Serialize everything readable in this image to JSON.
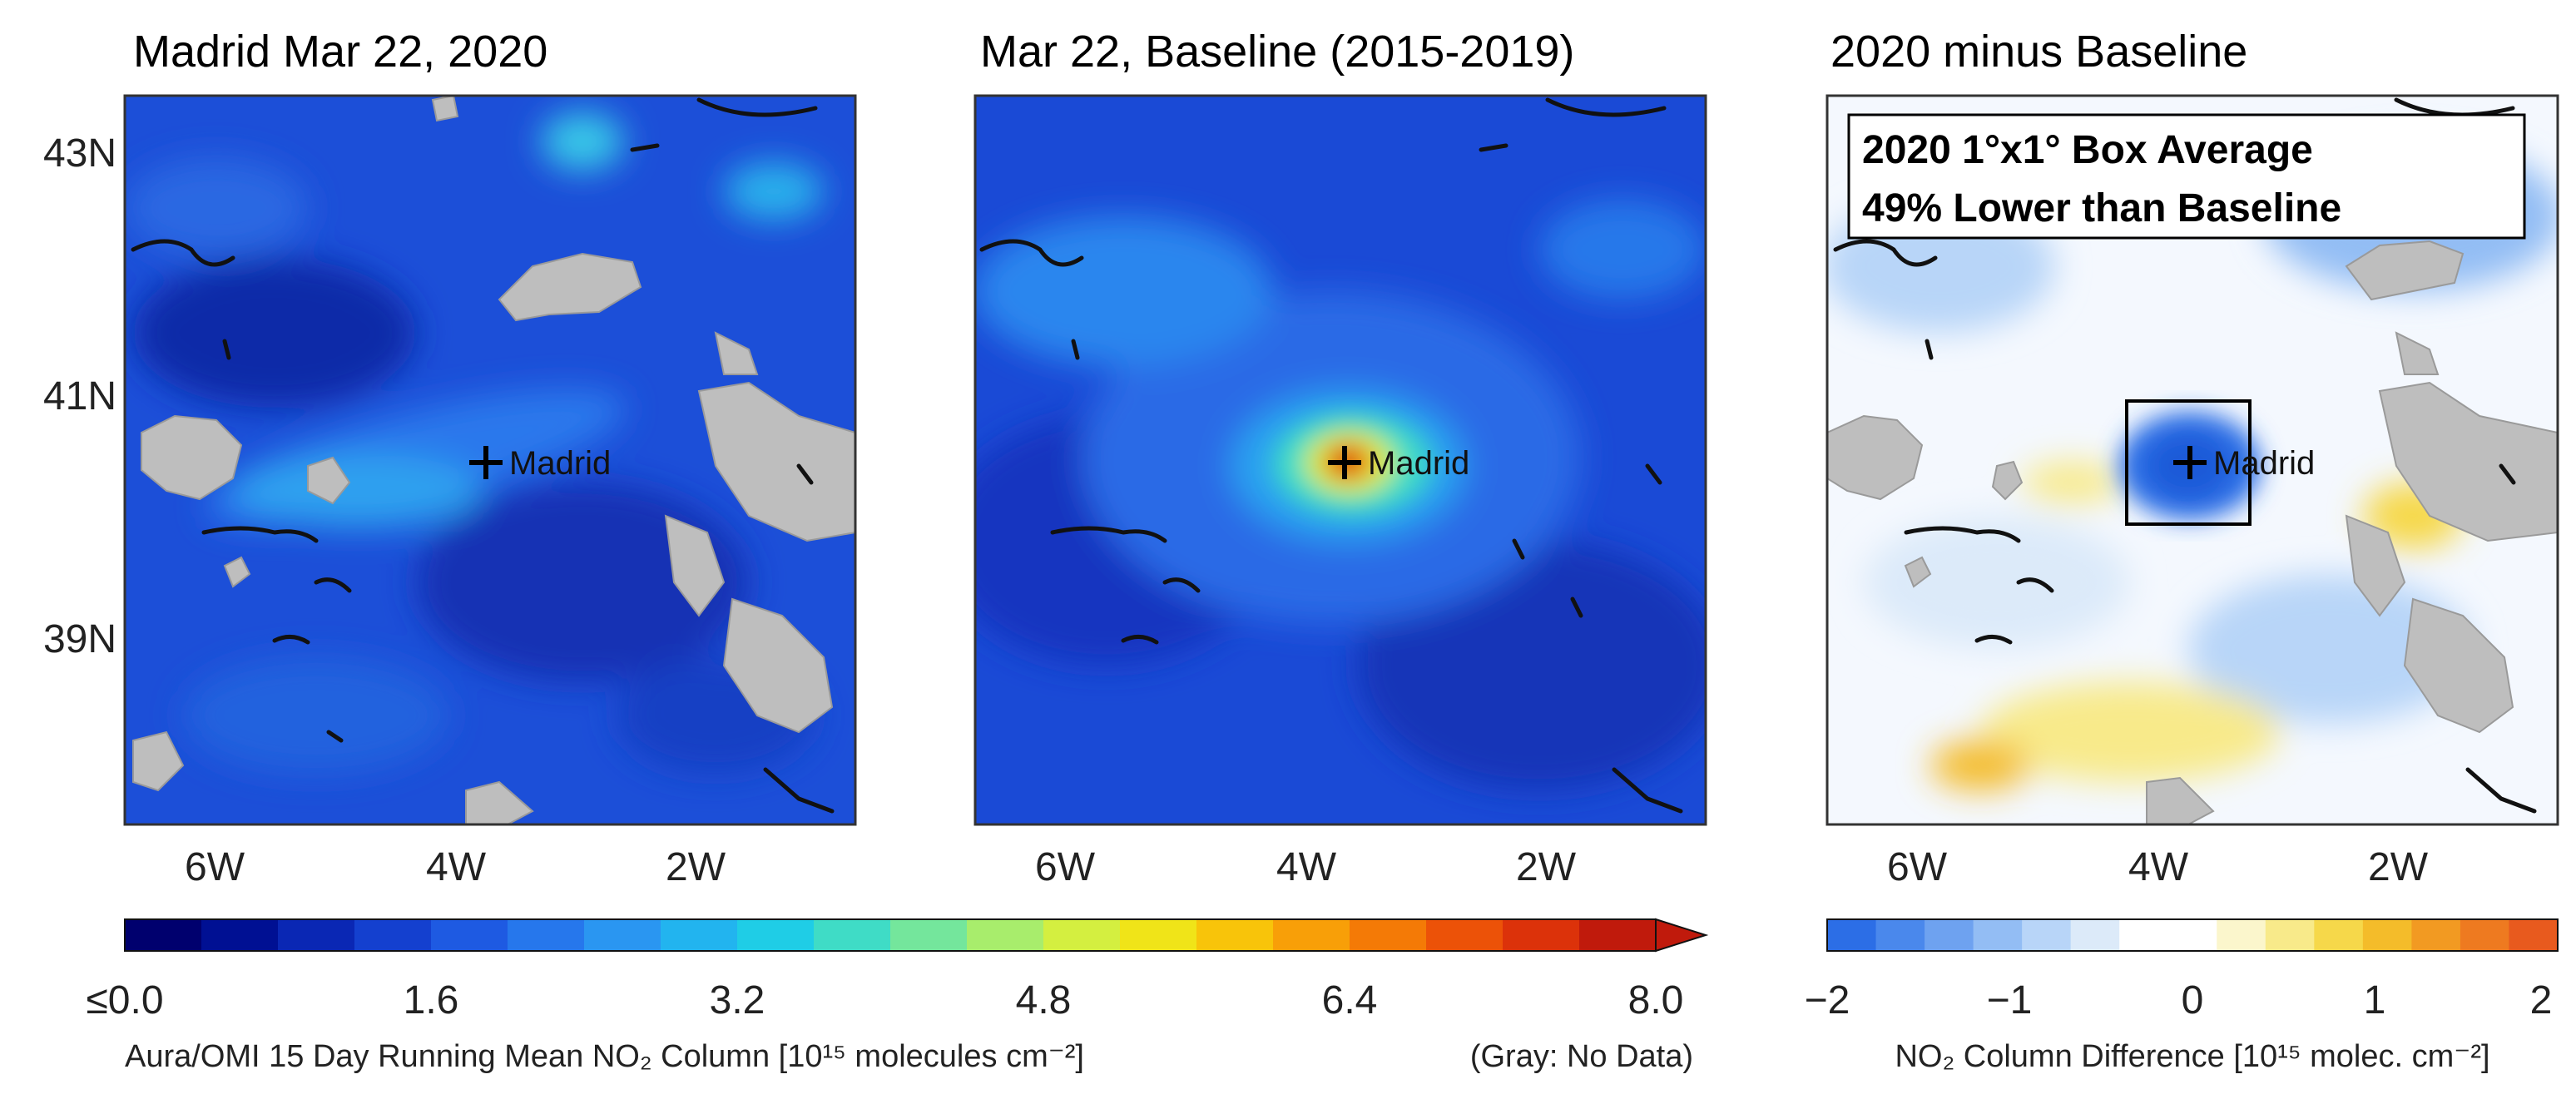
{
  "panels": [
    {
      "title": "Madrid Mar 22, 2020",
      "city": "Madrid"
    },
    {
      "title": "Mar 22, Baseline (2015-2019)",
      "city": "Madrid"
    },
    {
      "title": "2020 minus Baseline",
      "city": "Madrid",
      "annotation": [
        "2020 1°x1° Box Average",
        "49% Lower than Baseline"
      ]
    }
  ],
  "axes": {
    "lat_ticks": [
      "43N",
      "41N",
      "39N"
    ],
    "lon_ticks": [
      "6W",
      "4W",
      "2W"
    ]
  },
  "colorbar_main": {
    "ticks": [
      "≤0.0",
      "1.6",
      "3.2",
      "4.8",
      "6.4",
      "8.0"
    ],
    "label": "Aura/OMI 15 Day Running Mean NO₂ Column [10¹⁵ molecules cm⁻²]",
    "note": "(Gray: No Data)",
    "colors": [
      "#00006e",
      "#001093",
      "#0a27b4",
      "#1440cf",
      "#1e5ae2",
      "#2677ec",
      "#2a96f1",
      "#22b4ef",
      "#1fcde6",
      "#3fdcc6",
      "#74e69c",
      "#a8ed6c",
      "#d4ef40",
      "#f0e418",
      "#f8c40a",
      "#f89f08",
      "#f47a06",
      "#ec5208",
      "#dc320a",
      "#c01a0c"
    ]
  },
  "colorbar_diff": {
    "ticks": [
      "−2",
      "−1",
      "0",
      "1",
      "2"
    ],
    "label": "NO₂ Column Difference [10¹⁵ molec. cm⁻²]",
    "colors": [
      "#2c6ee6",
      "#4a88ec",
      "#6ea2f0",
      "#93bdf4",
      "#b8d5f8",
      "#dceaf9",
      "#ffffff",
      "#ffffff",
      "#fbf6cc",
      "#f8ea8a",
      "#f6d84a",
      "#f4bc2a",
      "#f29a22",
      "#ee7a20",
      "#e85a1e"
    ]
  }
}
